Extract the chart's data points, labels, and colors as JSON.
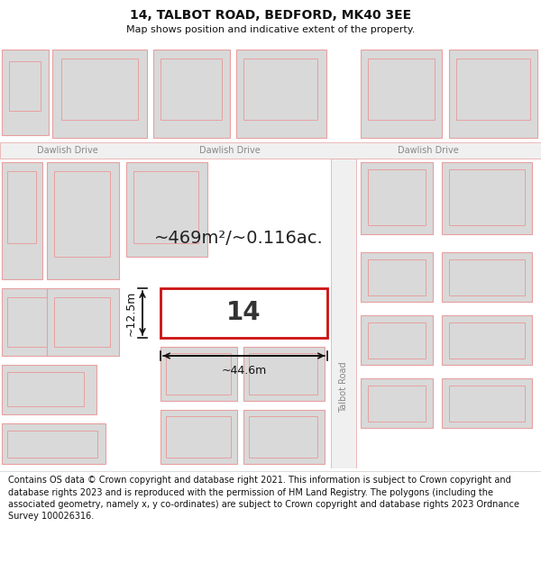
{
  "title": "14, TALBOT ROAD, BEDFORD, MK40 3EE",
  "subtitle": "Map shows position and indicative extent of the property.",
  "footer": "Contains OS data © Crown copyright and database right 2021. This information is subject to Crown copyright and database rights 2023 and is reproduced with the permission of HM Land Registry. The polygons (including the associated geometry, namely x, y co-ordinates) are subject to Crown copyright and database rights 2023 Ordnance Survey 100026316.",
  "area_text": "~469m²/~0.116ac.",
  "label_14": "14",
  "dim_width": "~44.6m",
  "dim_height": "~12.5m",
  "road_label": "Talbot Road",
  "street_label": "Dawlish Drive",
  "map_bg": "#f5f5f5",
  "building_fill": "#d9d9d9",
  "building_edge": "#e8a0a0",
  "plot_outline": "#cc1111",
  "road_line": "#e8a0a0",
  "dim_color": "#111111",
  "text_color": "#444444",
  "title_size": 10,
  "subtitle_size": 8,
  "footer_size": 7,
  "area_size": 14
}
